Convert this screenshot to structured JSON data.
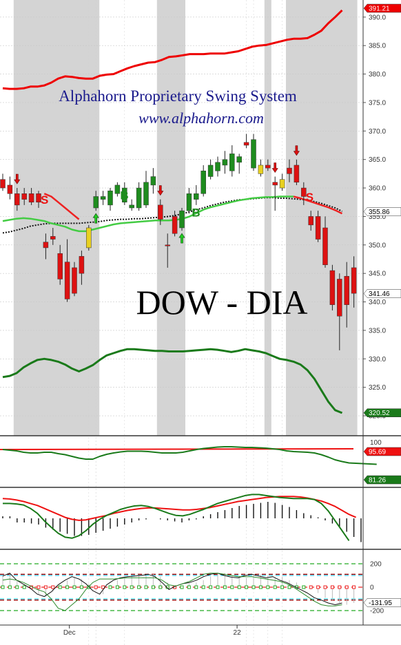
{
  "title_line1": "Alphahorn Proprietary Swing System",
  "title_line2": "www.alphahorn.com",
  "ticker_label": "DOW - DIA",
  "x_labels": [
    "Dec",
    "22"
  ],
  "colors": {
    "up": "#1e8c1e",
    "down": "#dd1111",
    "neutral": "#e8d020",
    "upper_band": "#ee0000",
    "lower_band": "#1a7a1a",
    "mid_green": "#44cc44",
    "mid_red": "#ee2222",
    "shade": "#d4d4d4"
  },
  "chart_data": {
    "type": "candlestick",
    "main": {
      "y_ticks": [
        390,
        385,
        380,
        375,
        370,
        365,
        360,
        355,
        350,
        345,
        340,
        335,
        330,
        325,
        320
      ],
      "ylim": [
        316.5,
        393
      ],
      "candles": [
        {
          "o": 361.5,
          "h": 362.5,
          "l": 359.5,
          "c": 360,
          "d": "down"
        },
        {
          "o": 360.5,
          "h": 362,
          "l": 358,
          "c": 359,
          "d": "down"
        },
        {
          "o": 359,
          "h": 360,
          "l": 356,
          "c": 357,
          "d": "down"
        },
        {
          "o": 359,
          "h": 360,
          "l": 357,
          "c": 358,
          "d": "down"
        },
        {
          "o": 359,
          "h": 360,
          "l": 357,
          "c": 357.5,
          "d": "down"
        },
        {
          "o": 359,
          "h": 359.5,
          "l": 356.5,
          "c": 357.5,
          "d": "down"
        },
        {
          "o": 350.5,
          "h": 352,
          "l": 347.5,
          "c": 349.5,
          "d": "down"
        },
        {
          "o": 351,
          "h": 353,
          "l": 350,
          "c": 351.5,
          "d": "down"
        },
        {
          "o": 348.5,
          "h": 350,
          "l": 343,
          "c": 344,
          "d": "down"
        },
        {
          "o": 347,
          "h": 351,
          "l": 340,
          "c": 340.5,
          "d": "down"
        },
        {
          "o": 346,
          "h": 347,
          "l": 341,
          "c": 341.5,
          "d": "down"
        },
        {
          "o": 348,
          "h": 349,
          "l": 343,
          "c": 345,
          "d": "down"
        },
        {
          "o": 349.5,
          "h": 353.5,
          "l": 349,
          "c": 353,
          "d": "neutral"
        },
        {
          "o": 356.5,
          "h": 359.5,
          "l": 356,
          "c": 358.5,
          "d": "up"
        },
        {
          "o": 358,
          "h": 359.5,
          "l": 357,
          "c": 358.5,
          "d": "up"
        },
        {
          "o": 357,
          "h": 360,
          "l": 356,
          "c": 359.5,
          "d": "up"
        },
        {
          "o": 359,
          "h": 361,
          "l": 358.5,
          "c": 360.5,
          "d": "up"
        },
        {
          "o": 357.5,
          "h": 361,
          "l": 357,
          "c": 360,
          "d": "up"
        },
        {
          "o": 356.5,
          "h": 358,
          "l": 356,
          "c": 357,
          "d": "up"
        },
        {
          "o": 356.5,
          "h": 361,
          "l": 356,
          "c": 360,
          "d": "up"
        },
        {
          "o": 357,
          "h": 363,
          "l": 356.5,
          "c": 361,
          "d": "up"
        },
        {
          "o": 360.5,
          "h": 363.5,
          "l": 359,
          "c": 362,
          "d": "up"
        },
        {
          "o": 357,
          "h": 358,
          "l": 353.5,
          "c": 354.5,
          "d": "down"
        },
        {
          "o": 350,
          "h": 352,
          "l": 346,
          "c": 350,
          "d": "down"
        },
        {
          "o": 355,
          "h": 356,
          "l": 351.5,
          "c": 352,
          "d": "down"
        },
        {
          "o": 353,
          "h": 356.5,
          "l": 352.5,
          "c": 356,
          "d": "up"
        },
        {
          "o": 356,
          "h": 360,
          "l": 355.5,
          "c": 359,
          "d": "up"
        },
        {
          "o": 358,
          "h": 360.5,
          "l": 357,
          "c": 359,
          "d": "up"
        },
        {
          "o": 359,
          "h": 364,
          "l": 358.5,
          "c": 363,
          "d": "up"
        },
        {
          "o": 362,
          "h": 365,
          "l": 361.5,
          "c": 364,
          "d": "up"
        },
        {
          "o": 363,
          "h": 365.5,
          "l": 362,
          "c": 364.5,
          "d": "up"
        },
        {
          "o": 364,
          "h": 366.5,
          "l": 362.5,
          "c": 365,
          "d": "up"
        },
        {
          "o": 363,
          "h": 367.5,
          "l": 362,
          "c": 366,
          "d": "up"
        },
        {
          "o": 364.5,
          "h": 366,
          "l": 362.5,
          "c": 365.5,
          "d": "up"
        },
        {
          "o": 367.5,
          "h": 369.5,
          "l": 367,
          "c": 368,
          "d": "down"
        },
        {
          "o": 363.5,
          "h": 369.5,
          "l": 363,
          "c": 368.5,
          "d": "up"
        },
        {
          "o": 364,
          "h": 365,
          "l": 362,
          "c": 362.5,
          "d": "neutral"
        },
        {
          "o": 364,
          "h": 365,
          "l": 363,
          "c": 363.5,
          "d": "down"
        },
        {
          "o": 361,
          "h": 362,
          "l": 356,
          "c": 360.5,
          "d": "down"
        },
        {
          "o": 360,
          "h": 362.5,
          "l": 359.5,
          "c": 361.5,
          "d": "neutral"
        },
        {
          "o": 363.5,
          "h": 365,
          "l": 361,
          "c": 362.5,
          "d": "down"
        },
        {
          "o": 364,
          "h": 365,
          "l": 360.5,
          "c": 361,
          "d": "down"
        },
        {
          "o": 360,
          "h": 361,
          "l": 357,
          "c": 358.5,
          "d": "down"
        },
        {
          "o": 355,
          "h": 356,
          "l": 352.5,
          "c": 353.5,
          "d": "down"
        },
        {
          "o": 355,
          "h": 356,
          "l": 350.5,
          "c": 351,
          "d": "down"
        },
        {
          "o": 353,
          "h": 355,
          "l": 346,
          "c": 346.5,
          "d": "down"
        },
        {
          "o": 345.5,
          "h": 346.5,
          "l": 338.5,
          "c": 339.5,
          "d": "down"
        },
        {
          "o": 344,
          "h": 345,
          "l": 331.5,
          "c": 337.5,
          "d": "down"
        },
        {
          "o": 344.5,
          "h": 347,
          "l": 335.5,
          "c": 339.5,
          "d": "down"
        },
        {
          "o": 346,
          "h": 348,
          "l": 339,
          "c": 341.5,
          "d": "down"
        }
      ],
      "upper_band": [
        377.5,
        377.4,
        377.4,
        377.5,
        377.8,
        377.8,
        378.0,
        378.5,
        379.2,
        379.6,
        379.5,
        379.3,
        379.2,
        379.2,
        379.7,
        379.9,
        380.0,
        380.5,
        381.0,
        381.4,
        381.7,
        382.0,
        382.1,
        382.5,
        383.0,
        383.1,
        383.3,
        383.5,
        383.5,
        383.5,
        383.6,
        383.6,
        383.6,
        383.8,
        384.0,
        384.4,
        384.8,
        385.0,
        385.1,
        385.4,
        385.7,
        386.0,
        386.2,
        386.2,
        386.3,
        386.9,
        387.6,
        388.9,
        390.0,
        391.2
      ],
      "lower_band": [
        326.8,
        327.0,
        327.5,
        328.5,
        329.2,
        329.8,
        330.0,
        329.8,
        329.5,
        329.0,
        328.3,
        327.8,
        328.3,
        328.9,
        329.8,
        330.6,
        331.0,
        331.4,
        331.7,
        331.7,
        331.6,
        331.5,
        331.4,
        331.4,
        331.3,
        331.3,
        331.3,
        331.4,
        331.5,
        331.6,
        331.7,
        331.6,
        331.4,
        331.2,
        331.4,
        331.7,
        331.5,
        331.3,
        331.0,
        330.5,
        330.0,
        329.8,
        329.5,
        329.0,
        328.0,
        326.5,
        324.5,
        322.5,
        321.0,
        320.5
      ],
      "mid_green": [
        354.2,
        354.4,
        354.6,
        354.7,
        354.6,
        354.4,
        354.2,
        353.8,
        353.5,
        353.2,
        352.7,
        352.4,
        352.4,
        352.7,
        353.0,
        353.3,
        353.6,
        353.8,
        353.9,
        354.0,
        354.1,
        354.2,
        354.3,
        354.3,
        354.3,
        354.4,
        354.6,
        355.0,
        355.6,
        356.2,
        356.6,
        356.9,
        357.2,
        357.5,
        357.8,
        358.0,
        358.2,
        358.3,
        358.4,
        358.4,
        358.5,
        358.5,
        358.5
      ],
      "mid_red_start": 42,
      "mid_red": [
        358.5,
        358.2,
        357.8,
        357.4,
        357.0,
        356.6,
        356.1,
        355.5
      ],
      "dotted": [
        352.1,
        352.3,
        352.6,
        352.9,
        353.3,
        353.5,
        353.7,
        353.8,
        353.8,
        353.8,
        353.8,
        353.8,
        353.9,
        354.0,
        354.1,
        354.3,
        354.4,
        354.5,
        354.5,
        354.6,
        354.6,
        354.7,
        354.8,
        354.9,
        355.0,
        355.2,
        355.5,
        355.8,
        356.2,
        356.5,
        356.9,
        357.2,
        357.5,
        357.7,
        357.9,
        358.0,
        358.1,
        358.2,
        358.3,
        358.3,
        358.2,
        358.2,
        358.1,
        358.0,
        357.9,
        357.6,
        357.3,
        356.9,
        356.5,
        355.9
      ],
      "shaded": [
        [
          2,
          13
        ],
        [
          22,
          25
        ],
        [
          37,
          37
        ],
        [
          40,
          49
        ]
      ],
      "down_arrows": [
        2,
        22,
        38,
        41
      ],
      "up_arrows": [
        13,
        25
      ],
      "s_signals": [
        {
          "i": 5,
          "t": "S"
        },
        {
          "i": 42,
          "t": "S"
        }
      ],
      "b_signals": [
        {
          "i": 16,
          "t": "B"
        },
        {
          "i": 26,
          "t": "B"
        }
      ],
      "tags": {
        "upper": "391.21",
        "mid": "355.86",
        "close": "341.46",
        "lower": "320.52"
      }
    },
    "osc1": {
      "y_ticks": [
        100
      ],
      "green": [
        90,
        88,
        86,
        82,
        80,
        80,
        82,
        82,
        78,
        75,
        70,
        65,
        62,
        62,
        70,
        76,
        80,
        83,
        85,
        85,
        85,
        84,
        82,
        80,
        80,
        80,
        82,
        86,
        90,
        93,
        95,
        97,
        98,
        98,
        97,
        96,
        96,
        95,
        94,
        92,
        90,
        86,
        84,
        83,
        82,
        80,
        75,
        68,
        60,
        55,
        51,
        50,
        49,
        48,
        47
      ],
      "red_flat": 84,
      "tags": {
        "red": "95.69",
        "green": "81.26"
      }
    },
    "osc2": {
      "green": [
        30,
        30,
        29,
        27,
        20,
        10,
        -5,
        -18,
        -30,
        -38,
        -40,
        -35,
        -25,
        -12,
        -2,
        6,
        12,
        18,
        22,
        25,
        26,
        24,
        20,
        15,
        10,
        6,
        5,
        8,
        13,
        18,
        24,
        30,
        34,
        38,
        42,
        46,
        48,
        48,
        46,
        44,
        42,
        41,
        40,
        40,
        40,
        38,
        30,
        15,
        -5,
        -25,
        -45
      ],
      "red": [
        40,
        39,
        37,
        34,
        30,
        26,
        20,
        14,
        8,
        2,
        -2,
        -4,
        -3,
        0,
        3,
        6,
        10,
        13,
        16,
        18,
        20,
        21,
        21,
        20,
        19,
        18,
        17,
        17,
        18,
        20,
        22,
        25,
        28,
        31,
        34,
        36,
        38,
        40,
        42,
        43,
        44,
        44,
        44,
        43,
        41,
        38,
        35,
        30,
        24,
        16,
        8,
        2
      ],
      "hist": [
        2,
        2,
        -4,
        -4,
        -5,
        -6,
        -9,
        -11,
        -13,
        -15,
        -17,
        -17,
        -16,
        -14,
        -12,
        -10,
        -8,
        -6,
        -4,
        -2,
        -1,
        0,
        -1,
        -2,
        -3,
        -4,
        -2,
        -1,
        2,
        4,
        6,
        8,
        10,
        12,
        13,
        14,
        15,
        16,
        15,
        13,
        11,
        8,
        5,
        3,
        1,
        -2,
        -5,
        -9,
        -13,
        -18,
        -23
      ]
    },
    "osc3": {
      "y_ticks": [
        200,
        0,
        -200
      ],
      "ylim": [
        -260,
        260
      ],
      "levels": [
        {
          "v": 200,
          "c": "green"
        },
        {
          "v": 110,
          "c": "darkred"
        },
        {
          "v": 100,
          "c": "cyan"
        },
        {
          "v": 0,
          "c": "red"
        },
        {
          "v": -100,
          "c": "cyan"
        },
        {
          "v": -110,
          "c": "darkred"
        },
        {
          "v": -200,
          "c": "green"
        }
      ],
      "line": [
        95,
        120,
        60,
        25,
        -10,
        -60,
        -80,
        -40,
        20,
        60,
        90,
        70,
        30,
        -30,
        -60,
        20,
        60,
        80,
        90,
        95,
        100,
        110,
        90,
        40,
        -20,
        10,
        30,
        40,
        60,
        90,
        110,
        120,
        100,
        85,
        80,
        100,
        110,
        95,
        80,
        90,
        60,
        40,
        10,
        -20,
        -50,
        -90,
        -110,
        -135,
        -150,
        -135
      ],
      "signal": [
        60,
        70,
        60,
        40,
        10,
        -20,
        -40,
        -100,
        -180,
        -200,
        -150,
        -100,
        -20,
        40,
        70,
        70,
        70,
        75,
        80,
        80,
        80,
        80,
        80,
        60,
        20,
        10,
        30,
        50,
        80,
        110,
        120,
        120,
        110,
        100,
        90,
        90,
        90,
        80,
        70,
        60,
        50,
        30,
        0,
        -40,
        -80,
        -120,
        -150,
        -160,
        -160,
        -150
      ],
      "close_tag": "-131.95"
    }
  }
}
